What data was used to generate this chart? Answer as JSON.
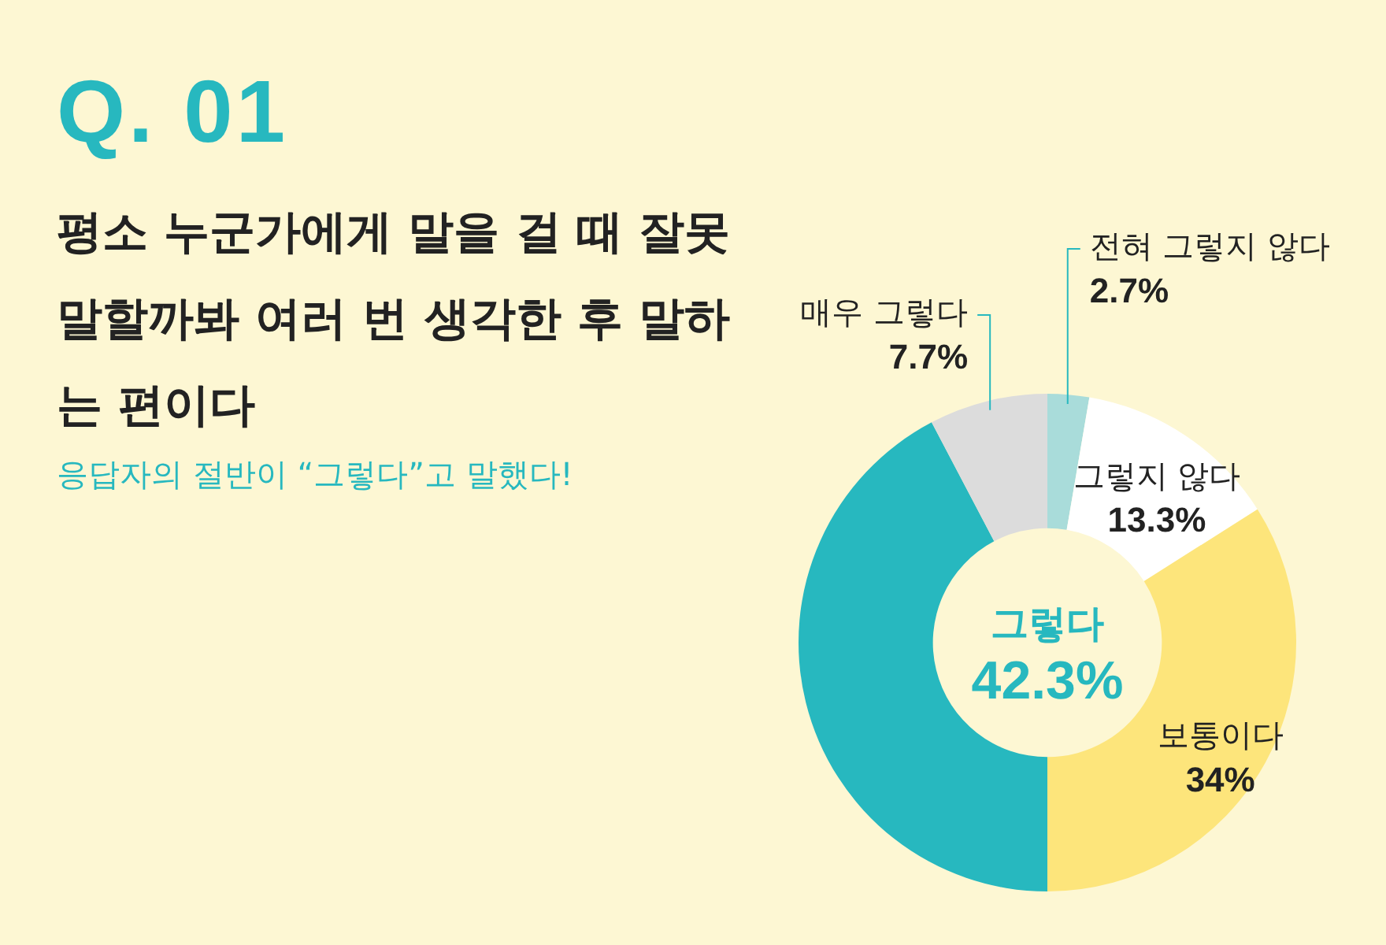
{
  "chart_data": {
    "type": "donut",
    "title": "Q. 01",
    "subtitle": "평소 누군가에게 말을 걸 때 잘못 말할까봐 여러 번 생각한 후 말하는 편이다",
    "annotations": [
      "응답자의 절반이 “그렇다”고 말했다!"
    ],
    "categories": [
      "전혀 그렇지 않다",
      "그렇지 않다",
      "보통이다",
      "그렇다",
      "매우 그렇다"
    ],
    "values": [
      2.7,
      13.3,
      34,
      42.3,
      7.7
    ],
    "value_labels": [
      "2.7%",
      "13.3%",
      "34%",
      "42.3%",
      "7.7%"
    ],
    "colors": [
      "#a9dcda",
      "#ffffff",
      "#fde57b",
      "#27b8bf",
      "#dcdcdc"
    ],
    "legend": false
  }
}
